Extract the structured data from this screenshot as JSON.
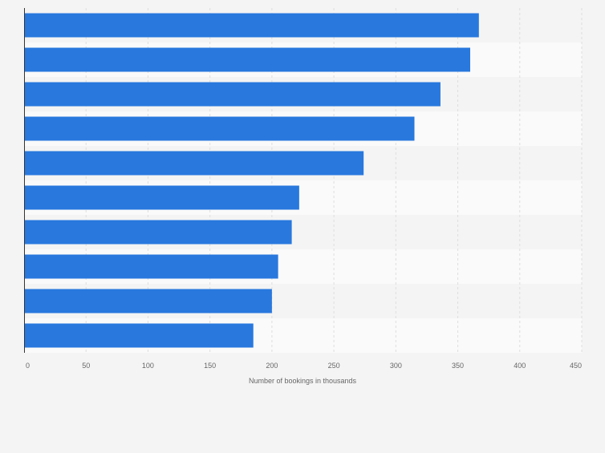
{
  "chart_data": {
    "type": "bar",
    "orientation": "horizontal",
    "title": "",
    "xlabel": "Number of bookings in thousands",
    "ylabel": "",
    "xlim": [
      0,
      450
    ],
    "ticks": [
      0,
      50,
      100,
      150,
      200,
      250,
      300,
      350,
      400,
      450
    ],
    "categories": [
      "",
      "",
      "",
      "",
      "",
      "",
      "",
      "",
      "",
      ""
    ],
    "values": [
      367,
      360,
      336,
      315,
      274,
      222,
      216,
      205,
      200,
      185
    ],
    "grid": true,
    "legend": "none",
    "colors": {
      "bar": "#2878de",
      "band_a": "#f4f4f4",
      "band_b": "#fafafa",
      "grid": "#dedede",
      "axis": "#333333",
      "text": "#666666"
    }
  }
}
